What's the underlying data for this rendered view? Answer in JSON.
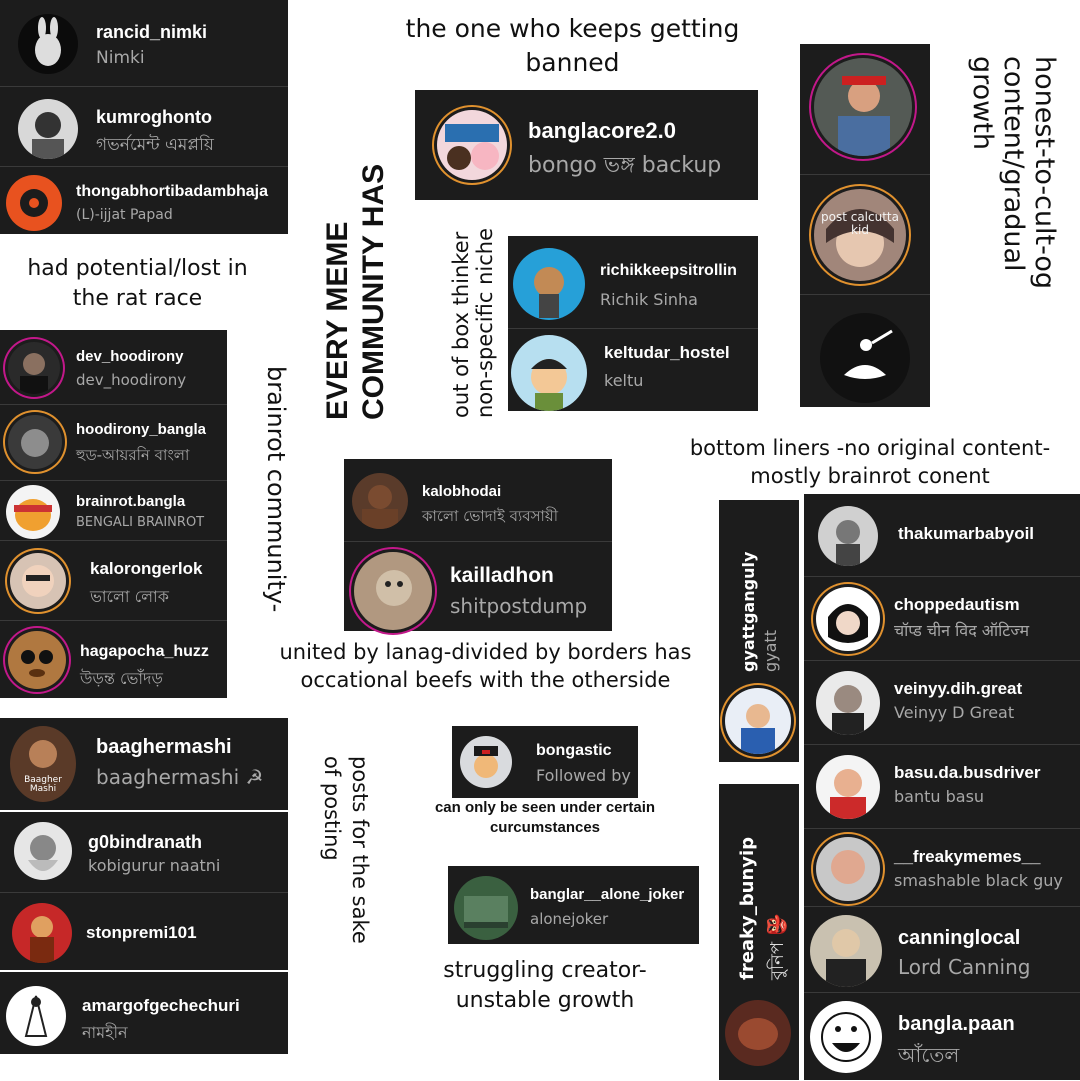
{
  "captions": {
    "banned": "the one who keeps getting banned",
    "lost": "had potential/lost in the rat race",
    "header": "EVERY MEME COMMUNITY HAS",
    "out_of_box": "out of box thinker non-specific niche",
    "honest": "honest-to-cult-og content/gradual growth",
    "bottom_liners": "bottom liners -no original content- mostly brainrot conent",
    "brainrot": "brainrot community-",
    "united": "united by lanag-divided by borders has occational beefs with the otherside",
    "posts": "posts for the sake of posting",
    "only_seen": "can only be seen under certain curcumstances",
    "struggling": "struggling creator- unstable growth"
  },
  "accounts": {
    "rancid": {
      "user": "rancid_nimki",
      "name": "Nimki"
    },
    "kumro": {
      "user": "kumroghonto",
      "name": "গভর্নমেন্ট এমপ্লয়ি"
    },
    "thonga": {
      "user": "thongabhortibadambhaja",
      "name": "(L)-ijjat Papad"
    },
    "banglacore": {
      "user": "banglacore2.0",
      "name": "bongo ভঙ্গ backup"
    },
    "richik": {
      "user": "richikkeepsitrollin",
      "name": "Richik Sinha"
    },
    "keltudar": {
      "user": "keltudar_hostel",
      "name": "keltu"
    },
    "calcutta": {
      "label": "post calcutta kid"
    },
    "dev": {
      "user": "dev_hoodirony",
      "name": "dev_hoodirony"
    },
    "hoodirony": {
      "user": "hoodirony_bangla",
      "name": "হুড-আয়রনি বাংলা"
    },
    "brainrot": {
      "user": "brainrot.bangla",
      "name": "BENGALI BRAINROT"
    },
    "kaloronger": {
      "user": "kalorongerlok",
      "name": "ভালো লোক"
    },
    "hagapocha": {
      "user": "hagapocha_huzz",
      "name": "উড়ন্ত ভোঁদড়"
    },
    "kalobhodai": {
      "user": "kalobhodai",
      "name": "কালো ভোদাই ব্যবসায়ী"
    },
    "kailladhon": {
      "user": "kailladhon",
      "name": "shitpostdump"
    },
    "baagher": {
      "user": "baaghermashi",
      "name": "baaghermashi ☭",
      "badge": "Baagher Mashi"
    },
    "g0bin": {
      "user": "g0bindranath",
      "name": "kobigurur naatni"
    },
    "stonpremi": {
      "user": "stonpremi101"
    },
    "amargof": {
      "user": "amargofgechechuri",
      "name": "নামহীন"
    },
    "bongastic": {
      "user": "bongastic",
      "name": "Followed by"
    },
    "alonejoker": {
      "user": "banglar__alone_joker",
      "name": "alonejoker"
    },
    "gyatt": {
      "user": "gyattganguly",
      "name": "gyatt"
    },
    "freaky": {
      "user": "freaky_bunyip",
      "name": "বুনিপ 👺"
    },
    "thakumar": {
      "user": "thakumarbabyoil"
    },
    "chopped": {
      "user": "choppedautism",
      "name": "चॉप्ड चीन विद ऑटिज्म"
    },
    "veinyy": {
      "user": "veinyy.dih.great",
      "name": "Veinyy D Great"
    },
    "basu": {
      "user": "basu.da.busdriver",
      "name": "bantu basu"
    },
    "freakymemes": {
      "user": "__freakymemes__",
      "name": "smashable black guy"
    },
    "canning": {
      "user": "canninglocal",
      "name": "Lord Canning"
    },
    "paan": {
      "user": "bangla.paan",
      "name": "আঁতেল"
    }
  },
  "colors": {
    "card": "#1c1c1c",
    "ring": "#e0912e",
    "muted": "#a8a8a8"
  }
}
